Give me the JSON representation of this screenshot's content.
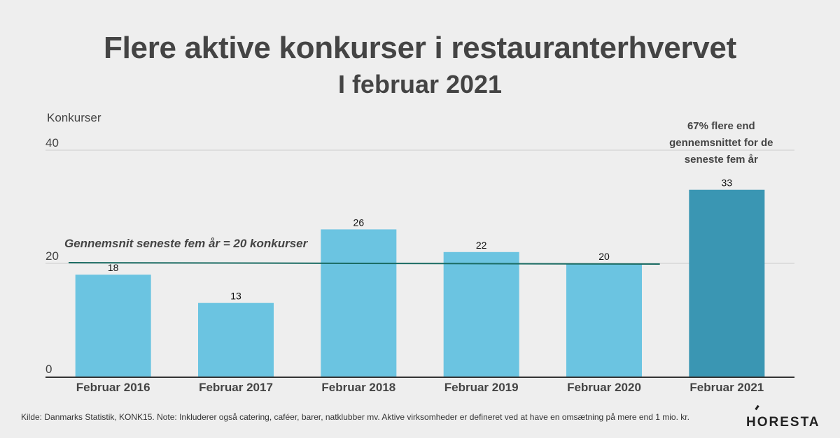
{
  "title": "Flere aktive konkurser i restauranterhvervet",
  "subtitle": "I februar 2021",
  "source_note": "Kilde: Danmarks Statistik, KONK15. Note: Inkluderer også catering, caféer, barer, natklubber mv. Aktive virksomheder er defineret ved at have en omsætning på mere end 1 mio. kr.",
  "logo": "HORESTA",
  "chart_data": {
    "type": "bar",
    "ylabel": "Konkurser",
    "ylim": [
      0,
      40
    ],
    "yticks": [
      0,
      20,
      40
    ],
    "grid": true,
    "categories": [
      "Februar 2016",
      "Februar 2017",
      "Februar 2018",
      "Februar 2019",
      "Februar 2020",
      "Februar 2021"
    ],
    "values": [
      18,
      13,
      26,
      22,
      20,
      33
    ],
    "bar_colors": [
      "#6bc4e1",
      "#6bc4e1",
      "#6bc4e1",
      "#6bc4e1",
      "#6bc4e1",
      "#3a96b3"
    ],
    "reference_line": {
      "value": 20,
      "label": "Gennemsnit seneste fem år = 20 konkurser",
      "color": "#1a6b62"
    },
    "annotation": [
      "67% flere end",
      "gennemsnittet for de",
      "seneste fem år"
    ]
  }
}
